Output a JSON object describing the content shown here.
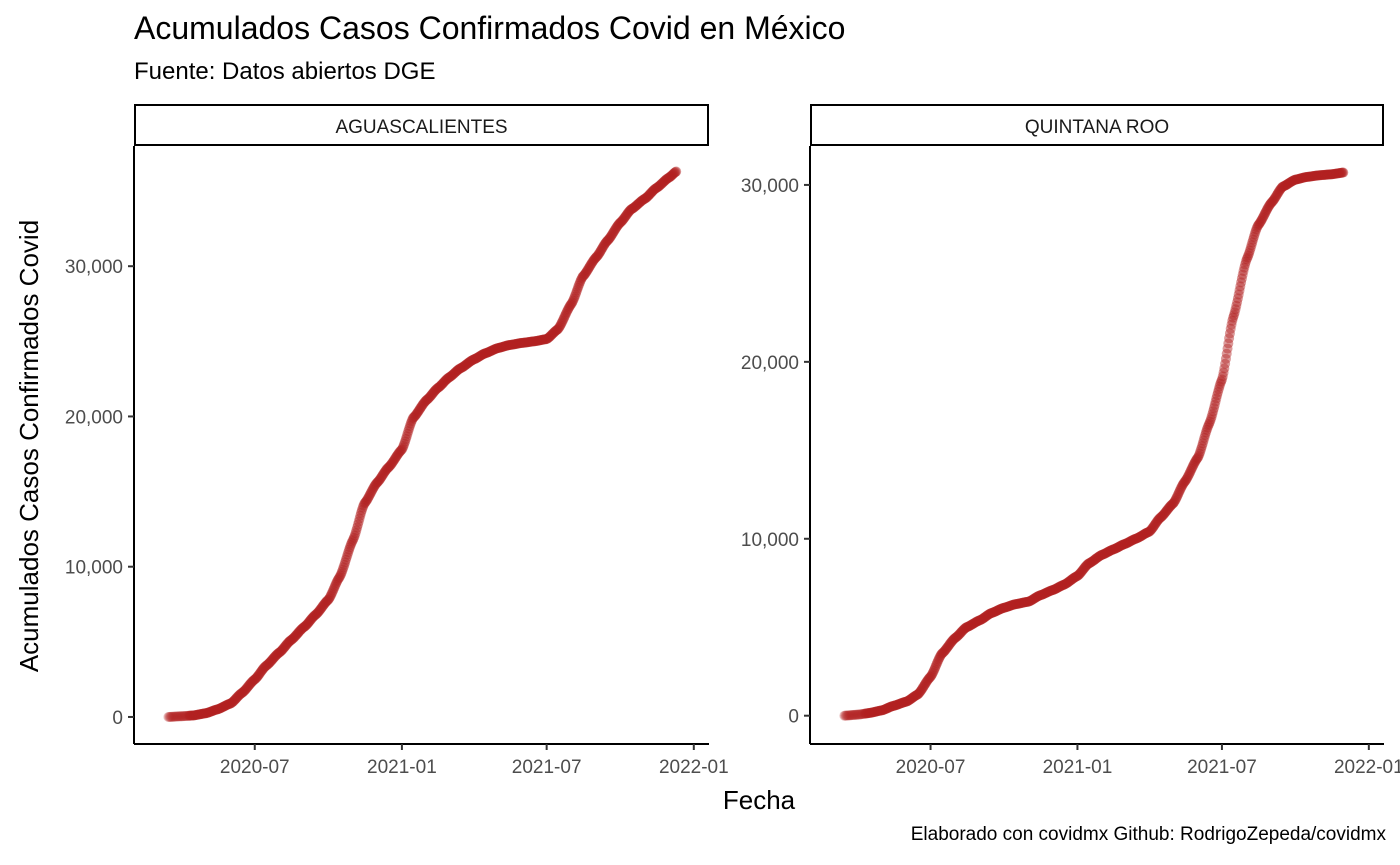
{
  "chart_data": {
    "type": "scatter",
    "title": "Acumulados Casos Confirmados Covid en México",
    "subtitle": "Fuente: Datos abiertos DGE",
    "xlabel": "Fecha",
    "ylabel": "Acumulados Casos Confirmados Covid",
    "caption": "Elaborado con covidmx Github: RodrigoZepeda/covidmx",
    "point_color": "#B22222",
    "x_ticks": [
      "2020-07",
      "2021-01",
      "2021-07",
      "2022-01"
    ],
    "legend": "none",
    "grid": false,
    "panels": [
      {
        "name": "AGUASCALIENTES",
        "y_ticks": [
          "0",
          "10,000",
          "20,000",
          "30,000"
        ],
        "ylim": [
          -1800,
          38000
        ],
        "series": [
          {
            "date": "2020-03-15",
            "value": 0
          },
          {
            "date": "2020-04-01",
            "value": 50
          },
          {
            "date": "2020-04-15",
            "value": 100
          },
          {
            "date": "2020-05-01",
            "value": 250
          },
          {
            "date": "2020-05-15",
            "value": 500
          },
          {
            "date": "2020-06-01",
            "value": 900
          },
          {
            "date": "2020-06-15",
            "value": 1600
          },
          {
            "date": "2020-07-01",
            "value": 2500
          },
          {
            "date": "2020-07-15",
            "value": 3400
          },
          {
            "date": "2020-08-01",
            "value": 4300
          },
          {
            "date": "2020-08-15",
            "value": 5100
          },
          {
            "date": "2020-09-01",
            "value": 6000
          },
          {
            "date": "2020-09-15",
            "value": 6800
          },
          {
            "date": "2020-10-01",
            "value": 7800
          },
          {
            "date": "2020-10-15",
            "value": 9300
          },
          {
            "date": "2020-11-01",
            "value": 11800
          },
          {
            "date": "2020-11-15",
            "value": 14200
          },
          {
            "date": "2020-12-01",
            "value": 15600
          },
          {
            "date": "2020-12-15",
            "value": 16600
          },
          {
            "date": "2021-01-01",
            "value": 17800
          },
          {
            "date": "2021-01-15",
            "value": 19900
          },
          {
            "date": "2021-02-01",
            "value": 21100
          },
          {
            "date": "2021-02-15",
            "value": 21900
          },
          {
            "date": "2021-03-01",
            "value": 22600
          },
          {
            "date": "2021-03-15",
            "value": 23200
          },
          {
            "date": "2021-04-01",
            "value": 23800
          },
          {
            "date": "2021-04-15",
            "value": 24200
          },
          {
            "date": "2021-05-01",
            "value": 24550
          },
          {
            "date": "2021-05-15",
            "value": 24750
          },
          {
            "date": "2021-06-01",
            "value": 24900
          },
          {
            "date": "2021-06-15",
            "value": 25000
          },
          {
            "date": "2021-07-01",
            "value": 25150
          },
          {
            "date": "2021-07-15",
            "value": 25800
          },
          {
            "date": "2021-08-01",
            "value": 27500
          },
          {
            "date": "2021-08-15",
            "value": 29300
          },
          {
            "date": "2021-09-01",
            "value": 30600
          },
          {
            "date": "2021-09-15",
            "value": 31700
          },
          {
            "date": "2021-10-01",
            "value": 32900
          },
          {
            "date": "2021-10-15",
            "value": 33800
          },
          {
            "date": "2021-11-01",
            "value": 34500
          },
          {
            "date": "2021-11-15",
            "value": 35200
          },
          {
            "date": "2021-12-01",
            "value": 35900
          },
          {
            "date": "2021-12-10",
            "value": 36300
          }
        ]
      },
      {
        "name": "QUINTANA ROO",
        "y_ticks": [
          "0",
          "10,000",
          "20,000",
          "30,000"
        ],
        "ylim": [
          -1600,
          32200
        ],
        "series": [
          {
            "date": "2020-03-15",
            "value": 0
          },
          {
            "date": "2020-04-01",
            "value": 60
          },
          {
            "date": "2020-04-15",
            "value": 150
          },
          {
            "date": "2020-05-01",
            "value": 300
          },
          {
            "date": "2020-05-15",
            "value": 550
          },
          {
            "date": "2020-06-01",
            "value": 800
          },
          {
            "date": "2020-06-15",
            "value": 1200
          },
          {
            "date": "2020-07-01",
            "value": 2200
          },
          {
            "date": "2020-07-15",
            "value": 3500
          },
          {
            "date": "2020-08-01",
            "value": 4400
          },
          {
            "date": "2020-08-15",
            "value": 5000
          },
          {
            "date": "2020-09-01",
            "value": 5400
          },
          {
            "date": "2020-09-15",
            "value": 5800
          },
          {
            "date": "2020-10-01",
            "value": 6100
          },
          {
            "date": "2020-10-15",
            "value": 6300
          },
          {
            "date": "2020-11-01",
            "value": 6450
          },
          {
            "date": "2020-11-15",
            "value": 6800
          },
          {
            "date": "2020-12-01",
            "value": 7100
          },
          {
            "date": "2020-12-15",
            "value": 7400
          },
          {
            "date": "2021-01-01",
            "value": 7900
          },
          {
            "date": "2021-01-15",
            "value": 8600
          },
          {
            "date": "2021-02-01",
            "value": 9100
          },
          {
            "date": "2021-02-15",
            "value": 9400
          },
          {
            "date": "2021-03-01",
            "value": 9700
          },
          {
            "date": "2021-03-15",
            "value": 10000
          },
          {
            "date": "2021-04-01",
            "value": 10400
          },
          {
            "date": "2021-04-15",
            "value": 11200
          },
          {
            "date": "2021-05-01",
            "value": 12000
          },
          {
            "date": "2021-05-15",
            "value": 13200
          },
          {
            "date": "2021-06-01",
            "value": 14600
          },
          {
            "date": "2021-06-15",
            "value": 16500
          },
          {
            "date": "2021-07-01",
            "value": 19000
          },
          {
            "date": "2021-07-15",
            "value": 22500
          },
          {
            "date": "2021-08-01",
            "value": 25800
          },
          {
            "date": "2021-08-15",
            "value": 27700
          },
          {
            "date": "2021-09-01",
            "value": 29000
          },
          {
            "date": "2021-09-15",
            "value": 29900
          },
          {
            "date": "2021-10-01",
            "value": 30300
          },
          {
            "date": "2021-10-15",
            "value": 30450
          },
          {
            "date": "2021-11-01",
            "value": 30550
          },
          {
            "date": "2021-11-15",
            "value": 30600
          },
          {
            "date": "2021-11-30",
            "value": 30700
          }
        ]
      }
    ]
  }
}
